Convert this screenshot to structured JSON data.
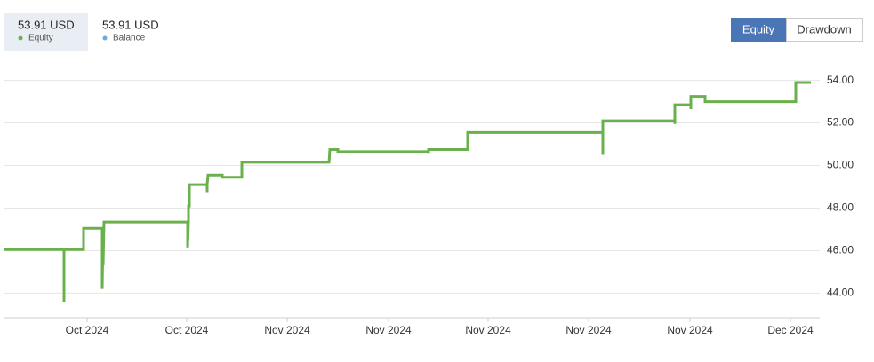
{
  "header": {
    "equity": {
      "value": "53.91 USD"
    },
    "balance": {
      "value": "53.91 USD",
      "label": "Balance"
    }
  },
  "buttons": [
    "Equity",
    "Drawdown"
  ],
  "chart_data": {
    "type": "line",
    "x": [
      0,
      67,
      67,
      67,
      89,
      89,
      110,
      110,
      111,
      111,
      112,
      206,
      206,
      207,
      207,
      208,
      208,
      228,
      228,
      228,
      229,
      245,
      245,
      267,
      267,
      365,
      365,
      366,
      375,
      375,
      477,
      477,
      477,
      521,
      521,
      673,
      673,
      673,
      754,
      754,
      754,
      772,
      772,
      772,
      788,
      788,
      890,
      890,
      907
    ],
    "series": [
      {
        "name": "Equity",
        "color": "#6ab04c",
        "values": [
          46.05,
          46.05,
          43.6,
          46.05,
          46.05,
          47.05,
          47.05,
          44.2,
          47.05,
          45.3,
          47.35,
          47.35,
          46.15,
          47.35,
          48.1,
          48.1,
          49.1,
          49.1,
          48.75,
          49.1,
          49.55,
          49.55,
          49.45,
          49.45,
          50.15,
          50.15,
          50.1,
          50.75,
          50.75,
          50.65,
          50.65,
          50.55,
          50.75,
          50.75,
          51.55,
          51.55,
          50.5,
          52.1,
          52.1,
          51.95,
          52.85,
          52.85,
          52.65,
          53.25,
          53.25,
          53.0,
          53.0,
          53.9,
          53.9
        ]
      }
    ],
    "xlim": [
      0,
      910
    ],
    "xticks": [
      {
        "value": 93,
        "label": "Oct 2024"
      },
      {
        "value": 205,
        "label": "Oct 2024"
      },
      {
        "value": 318,
        "label": "Nov 2024"
      },
      {
        "value": 432,
        "label": "Nov 2024"
      },
      {
        "value": 544,
        "label": "Nov 2024"
      },
      {
        "value": 657,
        "label": "Nov 2024"
      },
      {
        "value": 771,
        "label": "Nov 2024"
      },
      {
        "value": 884,
        "label": "Dec 2024"
      }
    ],
    "ylim": [
      42.85,
      54.9
    ],
    "yticks": [
      {
        "value": 44,
        "label": "44.00"
      },
      {
        "value": 46,
        "label": "46.00"
      },
      {
        "value": 48,
        "label": "48.00"
      },
      {
        "value": 50,
        "label": "50.00"
      },
      {
        "value": 52,
        "label": "52.00"
      },
      {
        "value": 54,
        "label": "54.00"
      }
    ],
    "grid": true
  }
}
